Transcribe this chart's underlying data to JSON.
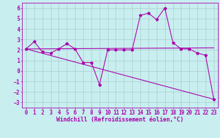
{
  "title": "",
  "xlabel": "Windchill (Refroidissement éolien,°C)",
  "ylabel": "",
  "bg_color": "#c8eef0",
  "line_color": "#aa00aa",
  "grid_color": "#aacccc",
  "xlim": [
    -0.5,
    23.5
  ],
  "ylim": [
    -3.5,
    6.5
  ],
  "yticks": [
    -3,
    -2,
    -1,
    0,
    1,
    2,
    3,
    4,
    5,
    6
  ],
  "xticks": [
    0,
    1,
    2,
    3,
    4,
    5,
    6,
    7,
    8,
    9,
    10,
    11,
    12,
    13,
    14,
    15,
    16,
    17,
    18,
    19,
    20,
    21,
    22,
    23
  ],
  "series1_x": [
    0,
    1,
    2,
    3,
    4,
    5,
    6,
    7,
    8,
    9,
    10,
    11,
    12,
    13,
    14,
    15,
    16,
    17,
    18,
    19,
    20,
    21,
    22,
    23
  ],
  "series1_y": [
    2.1,
    2.8,
    1.8,
    1.7,
    2.1,
    2.6,
    2.1,
    0.8,
    0.8,
    -1.3,
    2.0,
    2.0,
    2.0,
    2.0,
    5.3,
    5.5,
    4.9,
    6.0,
    2.7,
    2.1,
    2.1,
    1.7,
    1.5,
    -2.7
  ],
  "series2_x": [
    0,
    23
  ],
  "series2_y": [
    2.1,
    -2.7
  ],
  "series3_x": [
    0,
    23
  ],
  "series3_y": [
    2.1,
    2.2
  ],
  "font_size_xlabel": 6,
  "font_size_tick": 5.5,
  "marker_size": 3.0,
  "line_width": 0.8
}
